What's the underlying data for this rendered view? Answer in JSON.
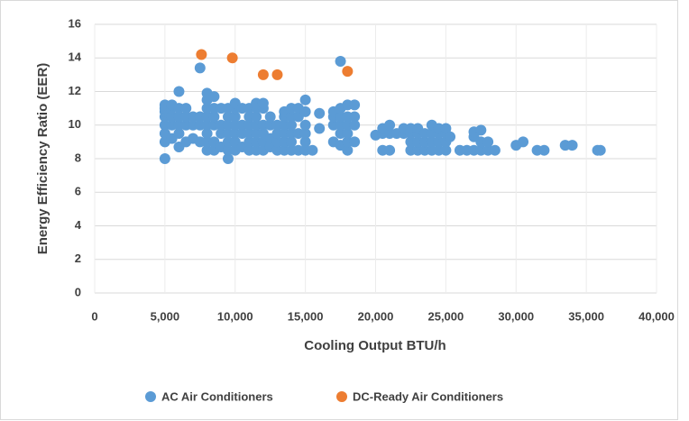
{
  "chart_data": {
    "type": "scatter",
    "xlabel": "Cooling Output BTU/h",
    "ylabel": "Energy Efficiency Ratio (EER)",
    "xlim": [
      0,
      40000
    ],
    "ylim": [
      0,
      16
    ],
    "xticks": [
      0,
      {
        "value": 5000,
        "label": "5,000"
      },
      {
        "value": 10000,
        "label": "10,000"
      },
      {
        "value": 15000,
        "label": "15,000"
      },
      {
        "value": 20000,
        "label": "20,000"
      },
      {
        "value": 25000,
        "label": "25,000"
      },
      {
        "value": 30000,
        "label": "30,000"
      },
      {
        "value": 35000,
        "label": "35,000"
      },
      {
        "value": 40000,
        "label": "40,000"
      }
    ],
    "yticks": [
      0,
      2,
      4,
      6,
      8,
      10,
      12,
      14,
      16
    ],
    "grid": true,
    "legend": "bottom",
    "series": [
      {
        "name": "AC Air Conditioners",
        "color": "#5b9bd5",
        "x": [
          5000,
          5000,
          5000,
          5000,
          5000,
          5000,
          5000,
          5000,
          5500,
          5500,
          5500,
          5500,
          5500,
          6000,
          6000,
          6000,
          6000,
          6000,
          6000,
          6500,
          6500,
          6500,
          6500,
          7000,
          7000,
          7000,
          7500,
          7500,
          7500,
          7500,
          8000,
          8000,
          8000,
          8000,
          8000,
          8000,
          8000,
          8000,
          8500,
          8500,
          8500,
          8500,
          8500,
          8500,
          9000,
          9000,
          9000,
          9000,
          9500,
          9500,
          9500,
          9500,
          9500,
          9500,
          9500,
          10000,
          10000,
          10000,
          10000,
          10000,
          10000,
          10000,
          10500,
          10500,
          10500,
          10500,
          11000,
          11000,
          11000,
          11000,
          11000,
          11000,
          11500,
          11500,
          11500,
          11500,
          11500,
          11500,
          11500,
          12000,
          12000,
          12000,
          12000,
          12000,
          12000,
          12500,
          12500,
          12500,
          12500,
          13000,
          13000,
          13000,
          13000,
          13500,
          13500,
          13500,
          13500,
          13500,
          13500,
          14000,
          14000,
          14000,
          14000,
          14000,
          14000,
          14500,
          14500,
          14500,
          14500,
          15000,
          15000,
          15000,
          15000,
          15000,
          15000,
          15500,
          16000,
          16000,
          17000,
          17000,
          17000,
          17000,
          17500,
          17500,
          17500,
          17500,
          17500,
          17500,
          18000,
          18000,
          18000,
          18000,
          18000,
          18000,
          18500,
          18500,
          18500,
          18500,
          20000,
          20500,
          20500,
          20500,
          21000,
          21000,
          21000,
          21500,
          22000,
          22000,
          22500,
          22500,
          22500,
          22500,
          23000,
          23000,
          23000,
          23000,
          23500,
          23500,
          23500,
          24000,
          24000,
          24000,
          24000,
          24500,
          24500,
          24500,
          24500,
          25000,
          25000,
          25000,
          25000,
          25300,
          26000,
          26500,
          27000,
          27000,
          27000,
          27500,
          27500,
          27500,
          28000,
          28000,
          28500,
          30000,
          30500,
          31500,
          32000,
          33500,
          34000,
          35800,
          36000
        ],
        "values": [
          8.0,
          9.0,
          9.5,
          10.0,
          10.5,
          10.8,
          11.0,
          11.2,
          9.2,
          10,
          10.5,
          11,
          11.2,
          8.7,
          9.5,
          10,
          10.5,
          11,
          12,
          9,
          10,
          10.5,
          11,
          9.2,
          10,
          10.5,
          9,
          10,
          10.5,
          13.4,
          8.5,
          9,
          9.5,
          10,
          10.5,
          11,
          11.5,
          11.9,
          8.5,
          9,
          10,
          10.5,
          11,
          11.7,
          8.7,
          9.5,
          10,
          11,
          8,
          8.5,
          9,
          9.5,
          10,
          10.5,
          11,
          8.5,
          9,
          9.5,
          10,
          10.5,
          11,
          11.3,
          8.7,
          9.5,
          10,
          11,
          8.5,
          9,
          9.5,
          10,
          10.5,
          11,
          8.5,
          9,
          9.5,
          10,
          10.5,
          11,
          11.3,
          8.5,
          9,
          9.5,
          10,
          11,
          11.3,
          8.7,
          9.2,
          10,
          10.5,
          8.5,
          9,
          9.5,
          10,
          8.5,
          9,
          9.5,
          10,
          10.5,
          10.8,
          8.5,
          9,
          9.5,
          10,
          10.5,
          11,
          8.5,
          9.5,
          10.5,
          11,
          8.5,
          9,
          9.5,
          10,
          10.8,
          11.5,
          8.5,
          9.8,
          10.7,
          9,
          10,
          10.5,
          10.8,
          8.8,
          9.5,
          10,
          10.5,
          11,
          13.8,
          8.5,
          9,
          9.5,
          10,
          10.5,
          11.2,
          9,
          10,
          10.5,
          11.2,
          9.4,
          8.5,
          9.5,
          9.8,
          8.5,
          9.5,
          10,
          9.5,
          9.5,
          9.8,
          8.5,
          9,
          9.5,
          9.8,
          8.5,
          9,
          9.5,
          9.8,
          8.5,
          9,
          9.5,
          8.5,
          9,
          9.5,
          10,
          8.5,
          9,
          9.5,
          9.8,
          8.5,
          9,
          9.5,
          9.8,
          9.3,
          8.5,
          8.5,
          8.5,
          9.3,
          9.6,
          8.5,
          9,
          9.7,
          8.5,
          9,
          8.5,
          8.8,
          9.0,
          8.5,
          8.5,
          8.8,
          8.8,
          8.5,
          8.5
        ]
      },
      {
        "name": "DC-Ready Air Conditioners",
        "color": "#ed7d31",
        "x": [
          7600,
          9800,
          12000,
          13000,
          18000
        ],
        "values": [
          14.2,
          14.0,
          13.0,
          13.0,
          13.2
        ]
      }
    ]
  }
}
